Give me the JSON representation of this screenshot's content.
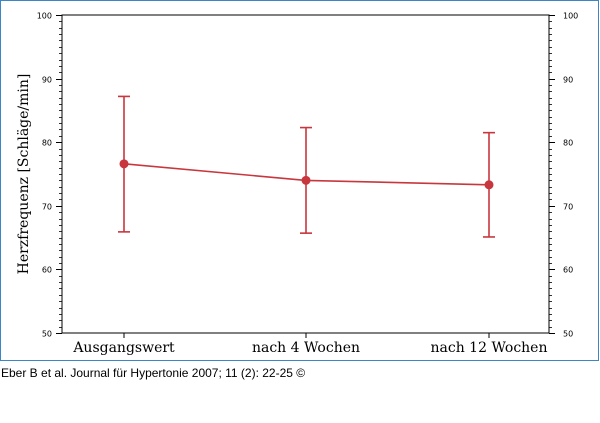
{
  "chart_data": {
    "type": "line",
    "categories": [
      "Ausgangswert",
      "nach 4 Wochen",
      "nach 12 Wochen"
    ],
    "series": [
      {
        "values": [
          76.6,
          74.0,
          73.3
        ],
        "error_high": [
          87.2,
          82.3,
          81.5
        ],
        "error_low": [
          65.9,
          65.7,
          65.1
        ]
      }
    ],
    "ylabel": "Herzfrequenz  [Schläge/min]",
    "xlabel": "",
    "ylim": [
      50,
      100
    ],
    "yticks": [
      50,
      60,
      70,
      80,
      90,
      100
    ],
    "grid": false,
    "secondary_y_axis": true
  },
  "colors": {
    "series": "#c8373d",
    "frame": "#3b86c4",
    "axis": "#000000"
  },
  "citation": "Eber B et al. Journal für Hypertonie 2007; 11 (2): 22-25 ©"
}
